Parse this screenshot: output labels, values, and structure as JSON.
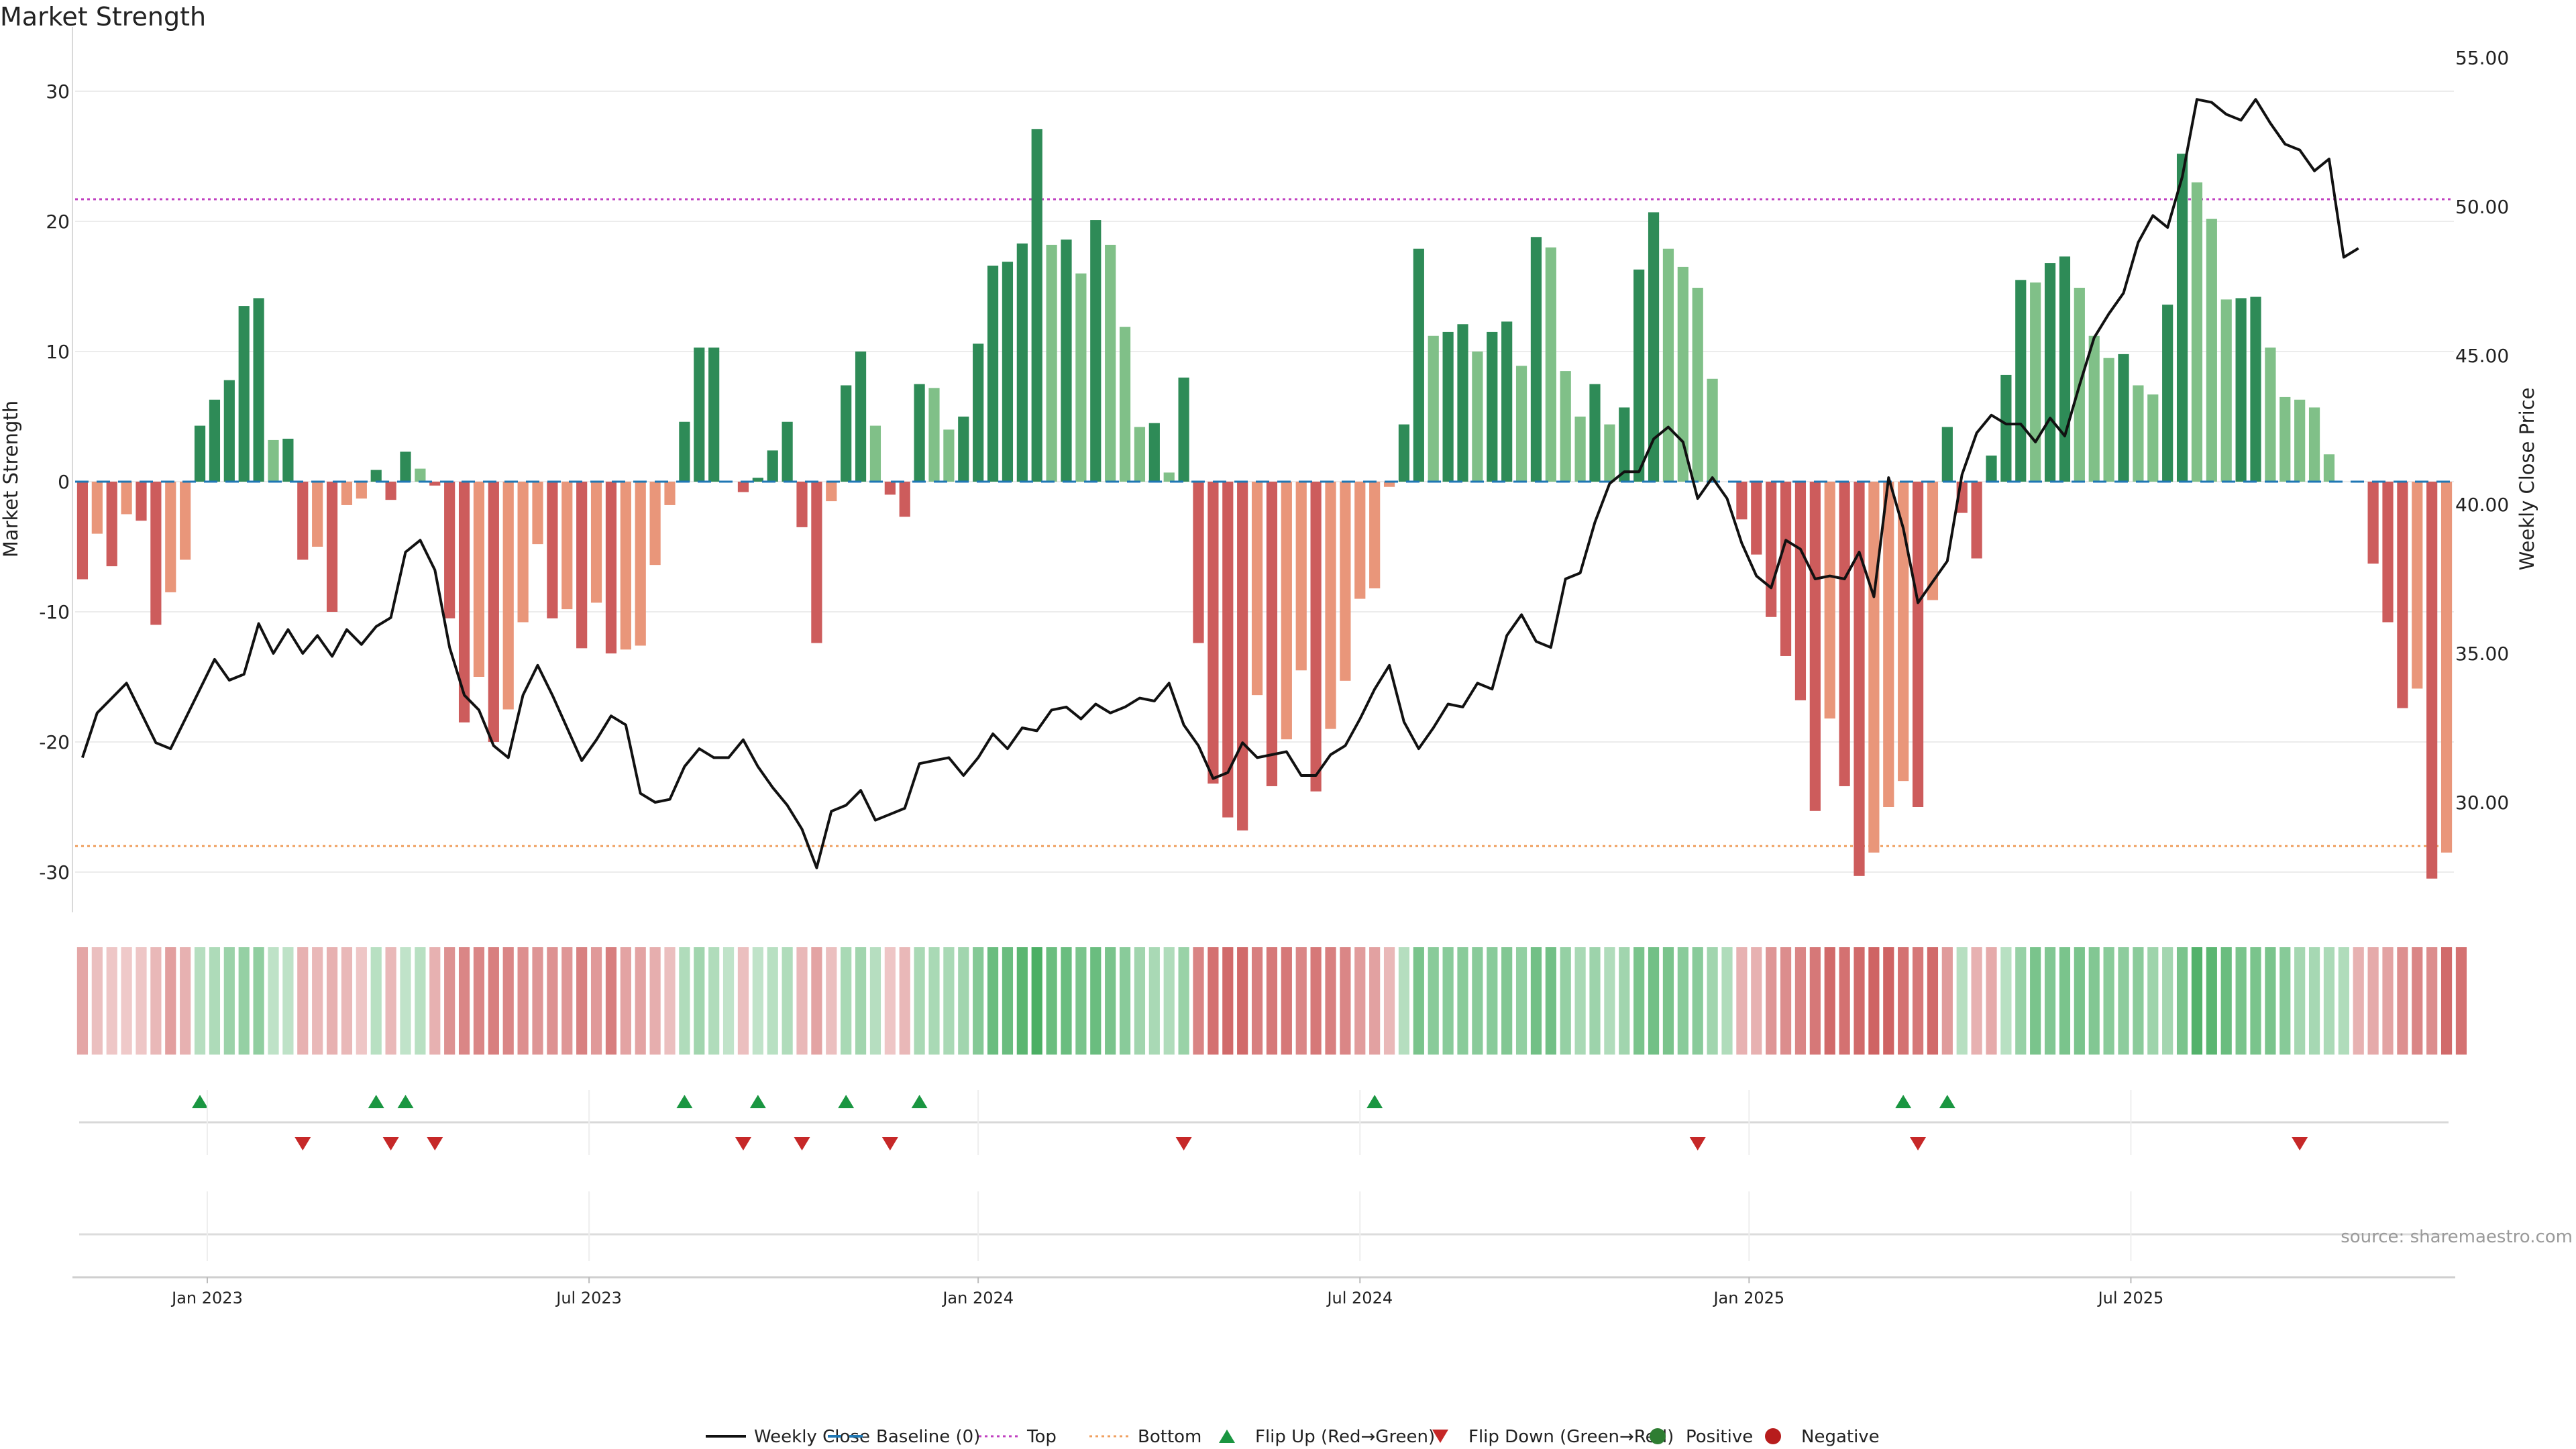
{
  "chart_data": {
    "type": "bar",
    "title": "Market Strength",
    "ylabel_left": "Market Strength",
    "ylabel_right": "Weekly Close Price",
    "xlabel": "",
    "ylim_left": [
      -33,
      33
    ],
    "ylim_right": [
      27.6,
      56
    ],
    "yticks_left": [
      30,
      20,
      10,
      0,
      -10,
      -20,
      -30
    ],
    "yticks_right": [
      "55.00",
      "50.00",
      "45.00",
      "40.00",
      "35.00",
      "30.00"
    ],
    "x_tick_labels": [
      "Jan 2023",
      "Jul 2023",
      "Jan 2024",
      "Jul 2024",
      "Jan 2025",
      "Jul 2025"
    ],
    "x_tick_week_index": [
      8.5,
      34.5,
      61,
      87,
      113.5,
      139.5
    ],
    "top_level": 21.7,
    "bottom_level": -28,
    "strength": [
      -7.5,
      -4,
      -6.5,
      -2.5,
      -3,
      -11,
      -8.5,
      -6,
      4.3,
      6.3,
      7.8,
      13.5,
      14.1,
      3.2,
      3.3,
      -6,
      -5,
      -10,
      -1.8,
      -1.3,
      0.9,
      -1.4,
      2.3,
      1,
      -0.3,
      -10.5,
      -18.5,
      -15,
      -20,
      -17.5,
      -10.8,
      -4.8,
      -10.5,
      -9.8,
      -12.8,
      -9.3,
      -13.2,
      -12.9,
      -12.6,
      -6.4,
      -1.8,
      4.6,
      10.3,
      10.3,
      0,
      -0.8,
      0.3,
      2.4,
      4.6,
      -3.5,
      -12.4,
      -1.5,
      7.4,
      10,
      4.3,
      -1,
      -2.7,
      7.5,
      7.2,
      4,
      5,
      10.6,
      16.6,
      16.9,
      18.3,
      27.1,
      18.2,
      18.6,
      16,
      20.1,
      18.2,
      11.9,
      4.2,
      4.5,
      0.7,
      8,
      -12.4,
      -23.2,
      -25.8,
      -26.8,
      -16.4,
      -23.4,
      -19.8,
      -14.5,
      -23.8,
      -19,
      -15.3,
      -9,
      -8.2,
      -0.4,
      4.4,
      17.9,
      11.2,
      11.5,
      12.1,
      10,
      11.5,
      12.3,
      8.9,
      18.8,
      18,
      8.5,
      5,
      7.5,
      4.4,
      5.7,
      16.3,
      20.7,
      17.9,
      16.5,
      14.9,
      7.9,
      0,
      -2.9,
      -5.6,
      -10.4,
      -13.4,
      -16.8,
      -25.3,
      -18.2,
      -23.4,
      -30.3,
      -28.5,
      -25,
      -23,
      -25,
      -9.1,
      4.2,
      -2.4,
      -5.9,
      2,
      8.2,
      15.5,
      15.3,
      16.8,
      17.3,
      14.9,
      11.2,
      9.5,
      9.8,
      7.4,
      6.7,
      13.6,
      25.2,
      23,
      20.2,
      14,
      14.1,
      14.2,
      10.3,
      6.5,
      6.3,
      5.7,
      2.1,
      0,
      0,
      -6.3,
      -10.8,
      -17.4,
      -15.9,
      -30.5,
      -28.5
    ],
    "weekly_close": [
      31.5,
      33,
      33.5,
      34,
      33,
      32,
      31.8,
      32.8,
      33.8,
      34.8,
      34.1,
      34.3,
      36,
      35,
      35.8,
      35,
      35.6,
      34.9,
      35.8,
      35.3,
      35.9,
      36.2,
      38.4,
      38.8,
      37.8,
      35.2,
      33.6,
      33.1,
      31.9,
      31.5,
      33.6,
      34.6,
      33.6,
      32.5,
      31.4,
      32.1,
      32.9,
      32.6,
      30.3,
      30,
      30.1,
      31.2,
      31.8,
      31.5,
      31.5,
      32.1,
      31.2,
      30.5,
      29.9,
      29.1,
      27.8,
      29.7,
      29.9,
      30.4,
      29.4,
      29.6,
      29.8,
      31.3,
      31.4,
      31.5,
      30.9,
      31.5,
      32.3,
      31.8,
      32.5,
      32.4,
      33.1,
      33.2,
      32.8,
      33.3,
      33,
      33.2,
      33.5,
      33.4,
      34,
      32.6,
      31.9,
      30.8,
      31,
      32,
      31.5,
      31.6,
      31.7,
      30.9,
      30.9,
      31.6,
      31.9,
      32.8,
      33.8,
      34.6,
      32.7,
      31.8,
      32.5,
      33.3,
      33.2,
      34,
      33.8,
      35.6,
      36.3,
      35.4,
      35.2,
      37.5,
      37.7,
      39.4,
      40.7,
      41.1,
      41.1,
      42.2,
      42.6,
      42.1,
      40.2,
      40.9,
      40.2,
      38.7,
      37.6,
      37.2,
      38.8,
      38.5,
      37.5,
      37.6,
      37.5,
      38.4,
      36.9,
      40.9,
      39.2,
      36.7,
      37.4,
      38.1,
      41,
      42.4,
      43,
      42.7,
      42.7,
      42.1,
      42.9,
      42.3,
      44,
      45.6,
      46.4,
      47.1,
      48.8,
      49.7,
      49.3,
      51,
      53.6,
      53.5,
      53.1,
      52.9,
      53.6,
      52.8,
      52.1,
      51.9,
      51.2,
      51.6,
      48.3,
      48.6
    ],
    "heat_strip": [
      -7.5,
      -4,
      -3,
      -2.5,
      -3,
      -5,
      -8.5,
      -6,
      4.3,
      5.3,
      7.8,
      8.5,
      9.1,
      3.2,
      3.3,
      -6,
      -5,
      -6,
      -5,
      -3,
      4,
      -5,
      3,
      4,
      -6,
      -10.5,
      -12,
      -12,
      -13,
      -12,
      -10.8,
      -10,
      -10.5,
      -9.8,
      -12.8,
      -9.3,
      -13.2,
      -8,
      -8,
      -6.4,
      -4,
      5,
      7,
      5,
      3,
      -4,
      3,
      4,
      5,
      -5,
      -8,
      -4,
      6,
      7,
      4.3,
      -3,
      -5,
      6,
      6,
      6,
      7,
      10.6,
      14,
      14,
      16,
      20,
      14,
      14,
      12,
      14,
      12,
      10,
      7,
      6,
      5,
      8,
      -12.4,
      -15,
      -16,
      -16,
      -13,
      -14,
      -14,
      -12,
      -14,
      -13,
      -12,
      -9,
      -8.2,
      -5,
      4.4,
      12,
      10,
      10,
      10,
      10,
      10,
      11,
      8.9,
      13,
      13,
      8.5,
      6,
      7.5,
      5,
      7,
      12,
      13,
      12,
      10,
      10,
      7,
      5,
      -6,
      -6,
      -10,
      -11,
      -12,
      -14,
      -16,
      -15,
      -16,
      -17,
      -17,
      -15,
      -14,
      -16,
      -9.1,
      4.2,
      -6,
      -7,
      4,
      8.2,
      12,
      11,
      12,
      12,
      11,
      10,
      9.5,
      9.8,
      7.4,
      6.7,
      12,
      17,
      16,
      14,
      12,
      12,
      12,
      10.3,
      6.5,
      6.3,
      5.7,
      5,
      -6,
      -7,
      -8,
      -10.8,
      -12,
      -11,
      -16,
      -15
    ],
    "flip_up_week_index": [
      8,
      20,
      22,
      41,
      46,
      52,
      57,
      88,
      124,
      127
    ],
    "flip_down_week_index": [
      15,
      21,
      24,
      45,
      49,
      55,
      75,
      110,
      125,
      151
    ],
    "color_positive_strong": "#2e8b57",
    "color_positive_weak": "#80c088",
    "color_negative_strong": "#cd5c5c",
    "color_negative_weak": "#e9967a",
    "color_close_line": "#111111",
    "color_top": "#c040c0",
    "color_bottom": "#f0a060",
    "color_baseline": "#1f77b4",
    "color_flip_up": "#1a9641",
    "color_flip_down": "#c62828",
    "legend": [
      {
        "label": "Weekly Close",
        "kind": "solid-line"
      },
      {
        "label": "Baseline (0)",
        "kind": "dashed-line"
      },
      {
        "label": "Top",
        "kind": "dotted-line-top"
      },
      {
        "label": "Bottom",
        "kind": "dotted-line-bottom"
      },
      {
        "label": "Flip Up (Red→Green)",
        "kind": "triangle-up"
      },
      {
        "label": "Flip Down (Green→Red)",
        "kind": "triangle-down"
      },
      {
        "label": "Positive",
        "kind": "dot-positive"
      },
      {
        "label": "Negative",
        "kind": "dot-negative"
      }
    ],
    "source_note": "source: sharemaestro.com"
  }
}
